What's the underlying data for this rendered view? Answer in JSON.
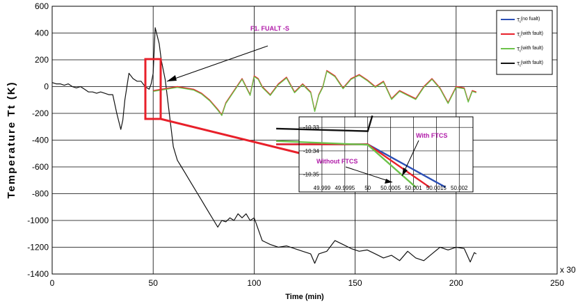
{
  "chart_data": {
    "type": "line",
    "ylabel": "Temperature Tt (K)",
    "xlabel": "Time (min)",
    "x_multiplier_label": "x 30",
    "xlim": [
      0,
      250
    ],
    "ylim": [
      -1400,
      600
    ],
    "x_ticks": [
      "0",
      "50",
      "100",
      "150",
      "200",
      "250"
    ],
    "y_ticks": [
      "600",
      "400",
      "200",
      "0",
      "-200",
      "-400",
      "-600",
      "-800",
      "-1000",
      "-1200",
      "-1400"
    ],
    "grid": true,
    "legend_position": "top-right",
    "legend": [
      {
        "main": "T",
        "sub": "t",
        "note": "(no fualt)",
        "color": "#2b4fb5"
      },
      {
        "main": "T",
        "sub": "t",
        "note": "(with fault)",
        "color": "#e8202a"
      },
      {
        "main": "T",
        "sub": "t",
        "note": "(with fault)",
        "color": "#6cc24a"
      },
      {
        "main": "T",
        "sub": "t",
        "note": "(with fault)",
        "color": "#111111"
      }
    ],
    "annotation": "F1. FUALT -S",
    "series": [
      {
        "color": "#111111",
        "x": [
          0,
          2,
          4,
          6,
          8,
          10,
          12,
          14,
          16,
          18,
          20,
          22,
          24,
          26,
          28,
          30,
          32,
          34,
          35,
          36,
          38,
          40,
          42,
          44,
          46,
          48,
          49,
          50,
          51,
          52,
          53,
          54,
          56,
          58,
          60,
          62,
          64,
          66,
          68,
          70,
          72,
          74,
          76,
          78,
          80,
          82,
          84,
          86,
          88,
          90,
          92,
          94,
          96,
          98,
          100,
          104,
          108,
          112,
          116,
          120,
          124,
          128,
          130,
          132,
          136,
          140,
          144,
          148,
          152,
          156,
          160,
          164,
          168,
          172,
          176,
          180,
          184,
          188,
          192,
          196,
          200,
          204,
          207,
          209,
          210
        ],
        "y": [
          30,
          20,
          20,
          10,
          20,
          0,
          -10,
          0,
          -20,
          -40,
          -40,
          -50,
          -40,
          -50,
          -60,
          -60,
          -200,
          -320,
          -250,
          -100,
          100,
          60,
          40,
          40,
          0,
          -20,
          20,
          100,
          440,
          380,
          320,
          200,
          50,
          -200,
          -450,
          -550,
          -600,
          -650,
          -700,
          -750,
          -800,
          -850,
          -900,
          -950,
          -1000,
          -1050,
          -1000,
          -1010,
          -980,
          -1000,
          -950,
          -980,
          -950,
          -1000,
          -980,
          -1150,
          -1180,
          -1200,
          -1190,
          -1210,
          -1230,
          -1250,
          -1320,
          -1250,
          -1230,
          -1150,
          -1180,
          -1210,
          -1230,
          -1220,
          -1250,
          -1280,
          -1260,
          -1300,
          -1230,
          -1280,
          -1300,
          -1250,
          -1200,
          -1220,
          -1200,
          -1210,
          -1310,
          -1240,
          -1250
        ]
      },
      {
        "color": "#e8202a",
        "x": [
          50,
          54,
          58,
          62,
          66,
          70,
          74,
          78,
          82,
          84,
          86,
          90,
          94,
          98,
          100,
          102,
          104,
          108,
          112,
          116,
          120,
          124,
          128,
          130,
          132,
          134,
          136,
          140,
          144,
          148,
          152,
          156,
          160,
          164,
          168,
          172,
          176,
          180,
          184,
          188,
          192,
          196,
          200,
          204,
          206,
          208,
          210
        ],
        "y": [
          -30,
          -20,
          -10,
          0,
          -10,
          -20,
          -50,
          -100,
          -170,
          -210,
          -120,
          -30,
          60,
          -60,
          80,
          60,
          0,
          -60,
          20,
          70,
          -40,
          20,
          -40,
          -180,
          -60,
          0,
          120,
          80,
          -10,
          60,
          90,
          50,
          0,
          40,
          -90,
          -30,
          -60,
          -90,
          0,
          60,
          -10,
          -120,
          0,
          -10,
          -110,
          -30,
          -40
        ]
      },
      {
        "color": "#6cc24a",
        "x": [
          50,
          54,
          58,
          62,
          66,
          70,
          74,
          78,
          82,
          84,
          86,
          90,
          94,
          98,
          100,
          102,
          104,
          108,
          112,
          116,
          120,
          124,
          128,
          130,
          132,
          134,
          136,
          140,
          144,
          148,
          152,
          156,
          160,
          164,
          168,
          172,
          176,
          180,
          184,
          188,
          192,
          196,
          200,
          204,
          206,
          208,
          210
        ],
        "y": [
          -36,
          -26,
          -16,
          -6,
          -16,
          -26,
          -56,
          -106,
          -176,
          -216,
          -126,
          -36,
          54,
          -66,
          74,
          54,
          -6,
          -66,
          14,
          64,
          -46,
          14,
          -46,
          -186,
          -66,
          -6,
          114,
          74,
          -16,
          54,
          84,
          44,
          -6,
          34,
          -96,
          -36,
          -66,
          -96,
          -6,
          54,
          -16,
          -126,
          -6,
          -16,
          -116,
          -36,
          -46
        ]
      }
    ],
    "inset": {
      "x_ticks": [
        "49.999",
        "49.9995",
        "50",
        "50.0005",
        "50.001",
        "50.0015",
        "50.002"
      ],
      "y_ticks": [
        "-10.33",
        "-10.34",
        "-10.35"
      ],
      "labels": [
        "With FTCS",
        "Without FTCS"
      ],
      "lines": [
        {
          "color": "#2b4fb5",
          "x": [
            49.998,
            50,
            50.0017
          ],
          "y": [
            -10.3372,
            -10.3372,
            -10.3555
          ]
        },
        {
          "color": "#e8202a",
          "x": [
            49.998,
            50,
            50.00135
          ],
          "y": [
            -10.3372,
            -10.3372,
            -10.3555
          ]
        },
        {
          "color": "#6cc24a",
          "x": [
            49.998,
            50,
            50.00105
          ],
          "y": [
            -10.3358,
            -10.3374,
            -10.3555
          ]
        },
        {
          "color": "#111111",
          "x": [
            49.998,
            50,
            50.0001
          ],
          "y": [
            -10.3305,
            -10.3316,
            -10.325
          ]
        }
      ]
    }
  }
}
